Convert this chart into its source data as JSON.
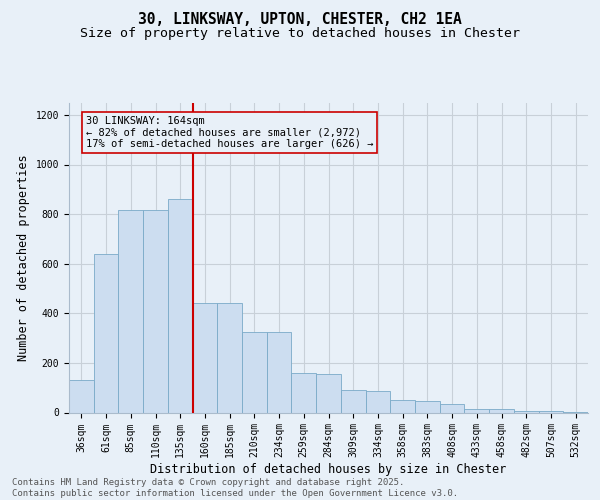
{
  "title_line1": "30, LINKSWAY, UPTON, CHESTER, CH2 1EA",
  "title_line2": "Size of property relative to detached houses in Chester",
  "xlabel": "Distribution of detached houses by size in Chester",
  "ylabel": "Number of detached properties",
  "bar_color": "#ccddf0",
  "bar_edge_color": "#7aaac8",
  "bg_color": "#e8f0f8",
  "grid_color": "#c8d0d8",
  "annotation_box_color": "#cc0000",
  "vline_color": "#cc0000",
  "categories": [
    "36sqm",
    "61sqm",
    "85sqm",
    "110sqm",
    "135sqm",
    "160sqm",
    "185sqm",
    "210sqm",
    "234sqm",
    "259sqm",
    "284sqm",
    "309sqm",
    "334sqm",
    "358sqm",
    "383sqm",
    "408sqm",
    "433sqm",
    "458sqm",
    "482sqm",
    "507sqm",
    "532sqm"
  ],
  "bar_heights": [
    130,
    640,
    815,
    815,
    860,
    440,
    440,
    325,
    325,
    160,
    155,
    90,
    85,
    50,
    45,
    35,
    14,
    14,
    5,
    5,
    3
  ],
  "vline_position": 5,
  "annotation_text": "30 LINKSWAY: 164sqm\n← 82% of detached houses are smaller (2,972)\n17% of semi-detached houses are larger (626) →",
  "ylim": [
    0,
    1250
  ],
  "yticks": [
    0,
    200,
    400,
    600,
    800,
    1000,
    1200
  ],
  "footnote": "Contains HM Land Registry data © Crown copyright and database right 2025.\nContains public sector information licensed under the Open Government Licence v3.0.",
  "title_fontsize": 10.5,
  "subtitle_fontsize": 9.5,
  "axis_label_fontsize": 8.5,
  "tick_fontsize": 7,
  "footnote_fontsize": 6.5,
  "annotation_fontsize": 7.5
}
